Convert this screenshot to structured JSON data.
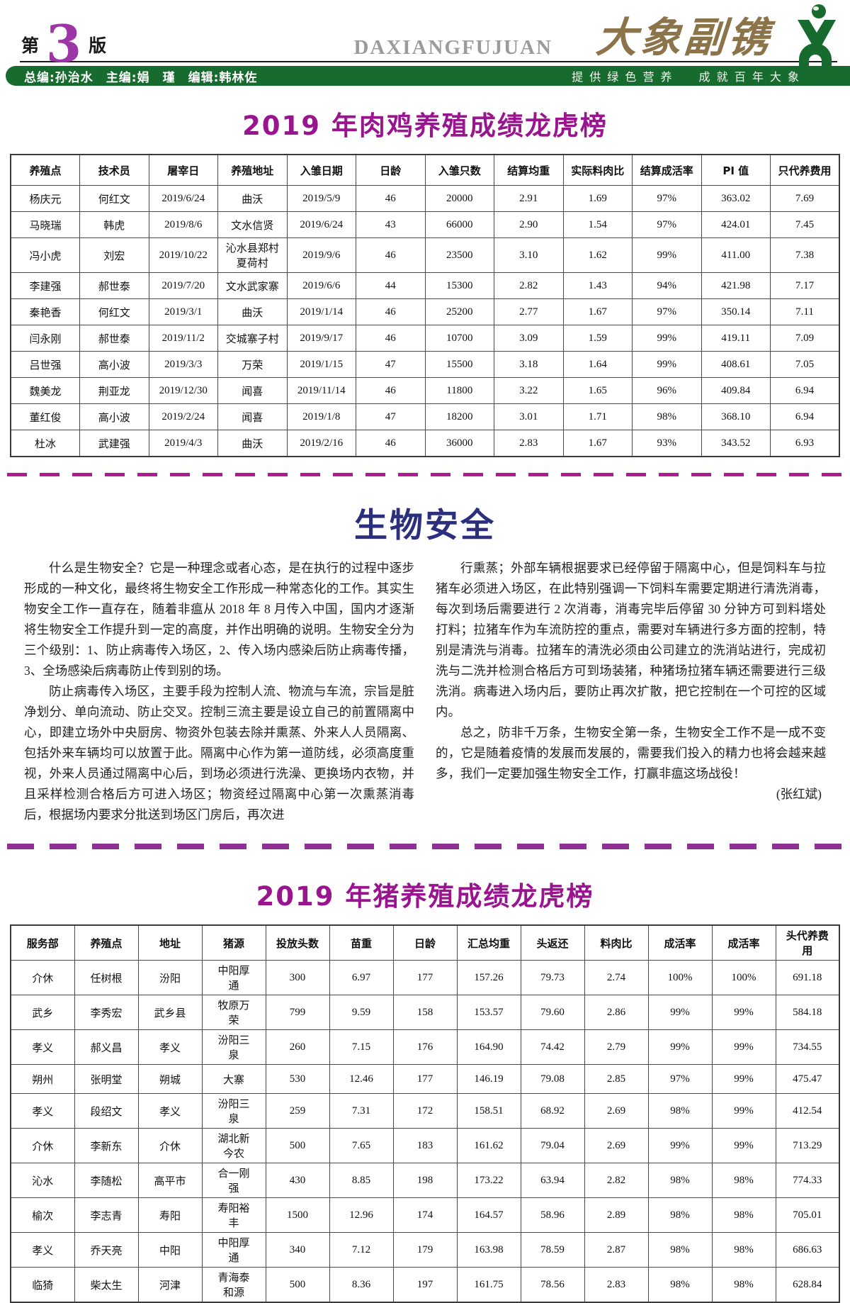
{
  "header": {
    "edition_prefix": "第",
    "edition_number": "3",
    "edition_suffix": "版",
    "masthead_latin": "DAXIANGFUJUAN",
    "masthead_cn": "大象副镌",
    "credits": "总编:孙治水　主编:娟　瑾　编辑:韩林佐",
    "slogan": "提 供 绿 色 营 养　　成 就 百 年 大 象"
  },
  "colors": {
    "title_purple": "#9b148f",
    "edition_purple": "#9c36a6",
    "bar_green": "#176b2e",
    "heading_navy": "#2b2f7e",
    "masthead_brown": "#8c744a",
    "divider_magenta": "#b01b90",
    "divider_purple": "#8e3094"
  },
  "chicken_table": {
    "title": "2019 年肉鸡养殖成绩龙虎榜",
    "columns": [
      "养殖点",
      "技术员",
      "屠宰日",
      "养殖地址",
      "入雏日期",
      "日龄",
      "入雏只数",
      "结算均重",
      "实际料肉比",
      "结算成活率",
      "PI 值",
      "只代养费用"
    ],
    "rows": [
      [
        "杨庆元",
        "何红文",
        "2019/6/24",
        "曲沃",
        "2019/5/9",
        "46",
        "20000",
        "2.91",
        "1.69",
        "97%",
        "363.02",
        "7.69"
      ],
      [
        "马晓瑞",
        "韩虎",
        "2019/8/6",
        "文水信贤",
        "2019/6/24",
        "43",
        "66000",
        "2.90",
        "1.54",
        "97%",
        "424.01",
        "7.45"
      ],
      [
        "冯小虎",
        "刘宏",
        "2019/10/22",
        "沁水县郑村夏荷村",
        "2019/9/6",
        "46",
        "23500",
        "3.10",
        "1.62",
        "99%",
        "411.00",
        "7.38"
      ],
      [
        "李建强",
        "郝世泰",
        "2019/7/20",
        "文水武家寨",
        "2019/6/6",
        "44",
        "15300",
        "2.82",
        "1.43",
        "94%",
        "421.98",
        "7.17"
      ],
      [
        "秦艳香",
        "何红文",
        "2019/3/1",
        "曲沃",
        "2019/1/14",
        "46",
        "25200",
        "2.77",
        "1.67",
        "97%",
        "350.14",
        "7.11"
      ],
      [
        "闫永刚",
        "郝世泰",
        "2019/11/2",
        "交城寨子村",
        "2019/9/17",
        "46",
        "10700",
        "3.09",
        "1.59",
        "99%",
        "419.11",
        "7.09"
      ],
      [
        "吕世强",
        "高小波",
        "2019/3/3",
        "万荣",
        "2019/1/15",
        "47",
        "15500",
        "3.18",
        "1.64",
        "99%",
        "408.61",
        "7.05"
      ],
      [
        "魏美龙",
        "荆亚龙",
        "2019/12/30",
        "闻喜",
        "2019/11/14",
        "46",
        "11800",
        "3.22",
        "1.65",
        "96%",
        "409.84",
        "6.94"
      ],
      [
        "董红俊",
        "高小波",
        "2019/2/24",
        "闻喜",
        "2019/1/8",
        "47",
        "18200",
        "3.01",
        "1.71",
        "98%",
        "368.10",
        "6.94"
      ],
      [
        "杜冰",
        "武建强",
        "2019/4/3",
        "曲沃",
        "2019/2/16",
        "46",
        "36000",
        "2.83",
        "1.67",
        "93%",
        "343.52",
        "6.93"
      ]
    ]
  },
  "article": {
    "heading": "生物安全",
    "col1_paragraphs": [
      "什么是生物安全？它是一种理念或者心态，是在执行的过程中逐步形成的一种文化，最终将生物安全工作形成一种常态化的工作。其实生物安全工作一直存在，随着非瘟从 2018 年 8 月传入中国，国内才逐渐将生物安全工作提升到一定的高度，并作出明确的说明。生物安全分为三个级别：1、防止病毒传入场区，2、传入场内感染后防止病毒传播，3、全场感染后病毒防止传到别的场。",
      "防止病毒传入场区，主要手段为控制人流、物流与车流，宗旨是脏净划分、单向流动、防止交叉。控制三流主要是设立自己的前置隔离中心，即建立场外中央厨房、物资外包装去除并熏蒸、外来人人员隔离、包括外来车辆均可以放置于此。隔离中心作为第一道防线，必须高度重视，外来人员通过隔离中心后，到场必须进行洗澡、更换场内衣物，并且采样检测合格后方可进入场区；物资经过隔离中心第一次熏蒸消毒后，根据场内要求分批送到场区门房后，再次进"
    ],
    "col2_paragraphs": [
      "行熏蒸；外部车辆根据要求已经停留于隔离中心，但是饲料车与拉猪车必须进入场区，在此特别强调一下饲料车需要定期进行清洗消毒，每次到场后需要进行 2 次消毒，消毒完毕后停留 30 分钟方可到料塔处打料；拉猪车作为车流防控的重点，需要对车辆进行多方面的控制，特别是清洗与消毒。拉猪车的清洗必须由公司建立的洗消站进行，完成初洗与二洗并检测合格后方可到场装猪，种猪场拉猪车辆还需要进行三级洗消。病毒进入场内后，要防止再次扩散，把它控制在一个可控的区域内。",
      "总之，防非千万条，生物安全第一条，生物安全工作不是一成不变的，它是随着疫情的发展而发展的，需要我们投入的精力也将会越来越多，我们一定要加强生物安全工作，打赢非瘟这场战役！"
    ],
    "signature": "(张红斌)"
  },
  "pig_table": {
    "title": "2019 年猪养殖成绩龙虎榜",
    "columns": [
      "服务部",
      "养殖点",
      "地址",
      "猪源",
      "投放头数",
      "苗重",
      "日龄",
      "汇总均重",
      "头返还",
      "料肉比",
      "成活率",
      "成活率",
      "头代养费用"
    ],
    "rows": [
      [
        "介休",
        "任树根",
        "汾阳",
        "中阳厚通",
        "300",
        "6.97",
        "177",
        "157.26",
        "79.73",
        "2.74",
        "100%",
        "100%",
        "691.18"
      ],
      [
        "武乡",
        "李秀宏",
        "武乡县",
        "牧原万荣",
        "799",
        "9.59",
        "158",
        "153.57",
        "79.60",
        "2.86",
        "99%",
        "99%",
        "584.18"
      ],
      [
        "孝义",
        "郝义昌",
        "孝义",
        "汾阳三泉",
        "260",
        "7.15",
        "176",
        "164.90",
        "74.42",
        "2.79",
        "99%",
        "99%",
        "734.55"
      ],
      [
        "朔州",
        "张明堂",
        "朔城",
        "大寨",
        "530",
        "12.46",
        "177",
        "146.19",
        "79.08",
        "2.85",
        "97%",
        "99%",
        "475.47"
      ],
      [
        "孝义",
        "段绍文",
        "孝义",
        "汾阳三泉",
        "259",
        "7.31",
        "172",
        "158.51",
        "68.92",
        "2.69",
        "98%",
        "99%",
        "412.54"
      ],
      [
        "介休",
        "李新东",
        "介休",
        "湖北新今农",
        "500",
        "7.65",
        "183",
        "161.62",
        "79.04",
        "2.69",
        "99%",
        "99%",
        "713.29"
      ],
      [
        "沁水",
        "李随松",
        "高平市",
        "合一刚强",
        "430",
        "8.85",
        "198",
        "173.22",
        "63.94",
        "2.82",
        "98%",
        "98%",
        "774.33"
      ],
      [
        "榆次",
        "李志青",
        "寿阳",
        "寿阳裕丰",
        "1500",
        "12.96",
        "174",
        "164.57",
        "58.96",
        "2.89",
        "98%",
        "98%",
        "705.01"
      ],
      [
        "孝义",
        "乔天亮",
        "中阳",
        "中阳厚通",
        "340",
        "7.12",
        "179",
        "163.98",
        "78.59",
        "2.87",
        "98%",
        "98%",
        "686.63"
      ],
      [
        "临猗",
        "柴太生",
        "河津",
        "青海泰和源",
        "500",
        "8.36",
        "197",
        "161.75",
        "78.56",
        "2.83",
        "98%",
        "98%",
        "628.84"
      ]
    ]
  }
}
